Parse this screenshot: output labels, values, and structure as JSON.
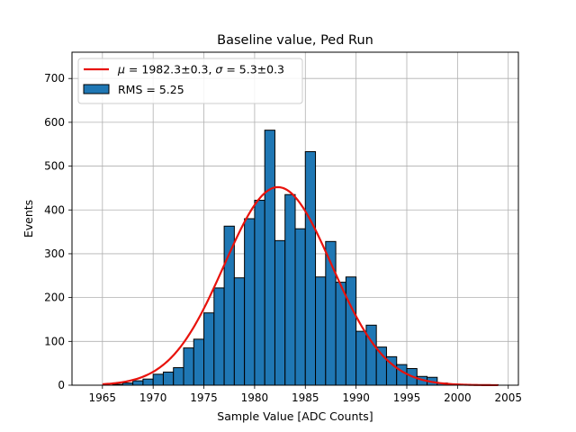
{
  "chart_data": {
    "type": "bar",
    "title": "Baseline value, Ped Run",
    "xlabel": "Sample Value [ADC Counts]",
    "ylabel": "Events",
    "xlim": [
      1962,
      2006
    ],
    "ylim": [
      0,
      760
    ],
    "xticks": [
      1965,
      1970,
      1975,
      1980,
      1985,
      1990,
      1995,
      2000,
      2005
    ],
    "yticks": [
      0,
      100,
      200,
      300,
      400,
      500,
      600,
      700
    ],
    "grid": true,
    "legend_position": "top-left",
    "histogram": {
      "name": "RMS = 5.25",
      "bin_width": 1,
      "bin_starts": [
        1966,
        1967,
        1968,
        1969,
        1970,
        1971,
        1972,
        1973,
        1974,
        1975,
        1976,
        1977,
        1978,
        1979,
        1980,
        1981,
        1982,
        1983,
        1984,
        1985,
        1986,
        1987,
        1988,
        1989,
        1990,
        1991,
        1992,
        1993,
        1994,
        1995,
        1996,
        1997,
        1998,
        1999,
        2000,
        2001,
        2002,
        2003
      ],
      "counts": [
        2,
        5,
        10,
        14,
        25,
        30,
        40,
        85,
        105,
        165,
        222,
        363,
        245,
        380,
        422,
        582,
        330,
        435,
        357,
        533,
        247,
        328,
        235,
        247,
        123,
        137,
        87,
        65,
        47,
        38,
        20,
        18,
        5,
        3,
        2,
        1,
        1,
        1
      ],
      "color": "#1f77b4"
    },
    "fit": {
      "name": "μ = 1982.3±0.3, σ = 5.3±0.3",
      "legend_prefix_mu": "μ",
      "legend_eq_mu": " = 1982.3±0.3, ",
      "legend_prefix_sigma": "σ",
      "legend_eq_sigma": " = 5.3±0.3",
      "mu": 1982.3,
      "sigma": 5.3,
      "amplitude": 452,
      "x_range": [
        1965,
        2004
      ],
      "color": "#e8120c"
    }
  }
}
